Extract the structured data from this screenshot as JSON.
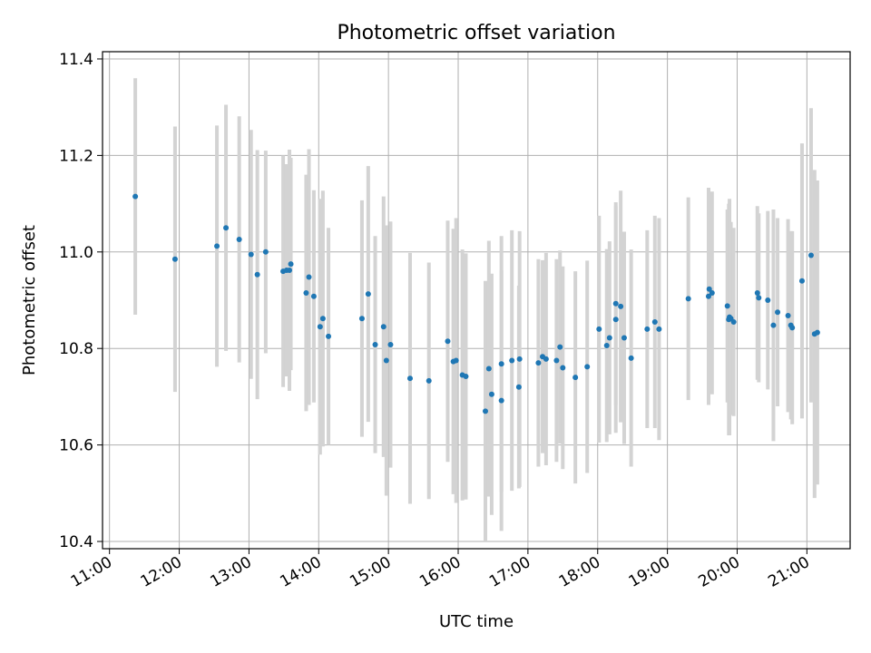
{
  "chart_data": {
    "type": "scatter",
    "title": "Photometric offset variation",
    "xlabel": "UTC time",
    "ylabel": "Photometric offset",
    "xlim": [
      10.9,
      21.62
    ],
    "ylim": [
      10.385,
      11.415
    ],
    "grid": true,
    "x_ticks": [
      {
        "value": 11,
        "label": "11:00"
      },
      {
        "value": 12,
        "label": "12:00"
      },
      {
        "value": 13,
        "label": "13:00"
      },
      {
        "value": 14,
        "label": "14:00"
      },
      {
        "value": 15,
        "label": "15:00"
      },
      {
        "value": 16,
        "label": "16:00"
      },
      {
        "value": 17,
        "label": "17:00"
      },
      {
        "value": 18,
        "label": "18:00"
      },
      {
        "value": 19,
        "label": "19:00"
      },
      {
        "value": 20,
        "label": "20:00"
      },
      {
        "value": 21,
        "label": "21:00"
      }
    ],
    "y_ticks": [
      {
        "value": 10.4,
        "label": "10.4"
      },
      {
        "value": 10.6,
        "label": "10.6"
      },
      {
        "value": 10.8,
        "label": "10.8"
      },
      {
        "value": 11.0,
        "label": "11.0"
      },
      {
        "value": 11.2,
        "label": "11.2"
      },
      {
        "value": 11.4,
        "label": "11.4"
      }
    ],
    "colors": {
      "points": "#1f77b4",
      "errorbars": "#d3d3d3",
      "grid": "#b0b0b0"
    },
    "series": [
      {
        "name": "offset",
        "points": [
          [
            11.37,
            11.115,
            0.245
          ],
          [
            11.94,
            10.985,
            0.275
          ],
          [
            12.54,
            11.012,
            0.25
          ],
          [
            12.67,
            11.05,
            0.255
          ],
          [
            12.86,
            11.026,
            0.255
          ],
          [
            13.03,
            10.995,
            0.258
          ],
          [
            13.12,
            10.953,
            0.258
          ],
          [
            13.24,
            11.0,
            0.21
          ],
          [
            13.49,
            10.96,
            0.24
          ],
          [
            13.54,
            10.962,
            0.22
          ],
          [
            13.58,
            10.962,
            0.25
          ],
          [
            13.6,
            10.975,
            0.22
          ],
          [
            13.82,
            10.915,
            0.245
          ],
          [
            13.86,
            10.948,
            0.265
          ],
          [
            13.93,
            10.908,
            0.22
          ],
          [
            14.02,
            10.845,
            0.265
          ],
          [
            14.06,
            10.862,
            0.265
          ],
          [
            14.14,
            10.825,
            0.225
          ],
          [
            14.62,
            10.862,
            0.245
          ],
          [
            14.71,
            10.913,
            0.265
          ],
          [
            14.81,
            10.808,
            0.225
          ],
          [
            14.93,
            10.845,
            0.27
          ],
          [
            14.97,
            10.775,
            0.28
          ],
          [
            15.03,
            10.808,
            0.255
          ],
          [
            15.31,
            10.738,
            0.26
          ],
          [
            15.58,
            10.733,
            0.245
          ],
          [
            15.85,
            10.815,
            0.25
          ],
          [
            15.93,
            10.773,
            0.275
          ],
          [
            15.97,
            10.775,
            0.295
          ],
          [
            16.06,
            10.745,
            0.26
          ],
          [
            16.11,
            10.742,
            0.255
          ],
          [
            16.39,
            10.67,
            0.27
          ],
          [
            16.44,
            10.758,
            0.265
          ],
          [
            16.48,
            10.705,
            0.25
          ],
          [
            16.62,
            10.768,
            0.265
          ],
          [
            16.62,
            10.692,
            0.27
          ],
          [
            16.77,
            10.775,
            0.27
          ],
          [
            16.87,
            10.72,
            0.21
          ],
          [
            16.88,
            10.778,
            0.265
          ],
          [
            17.15,
            10.77,
            0.215
          ],
          [
            17.21,
            10.783,
            0.2
          ],
          [
            17.26,
            10.778,
            0.22
          ],
          [
            17.41,
            10.775,
            0.21
          ],
          [
            17.46,
            10.803,
            0.2
          ],
          [
            17.5,
            10.76,
            0.21
          ],
          [
            17.68,
            10.74,
            0.22
          ],
          [
            17.85,
            10.762,
            0.22
          ],
          [
            18.02,
            10.84,
            0.235
          ],
          [
            18.13,
            10.806,
            0.2
          ],
          [
            18.17,
            10.822,
            0.2
          ],
          [
            18.26,
            10.86,
            0.235
          ],
          [
            18.26,
            10.893,
            0.21
          ],
          [
            18.33,
            10.887,
            0.24
          ],
          [
            18.38,
            10.822,
            0.22
          ],
          [
            18.48,
            10.78,
            0.225
          ],
          [
            18.71,
            10.84,
            0.205
          ],
          [
            18.82,
            10.855,
            0.22
          ],
          [
            18.88,
            10.84,
            0.23
          ],
          [
            19.3,
            10.903,
            0.21
          ],
          [
            19.59,
            10.908,
            0.225
          ],
          [
            19.6,
            10.923,
            0.19
          ],
          [
            19.64,
            10.915,
            0.21
          ],
          [
            19.86,
            10.888,
            0.2
          ],
          [
            19.88,
            10.86,
            0.24
          ],
          [
            19.89,
            10.865,
            0.245
          ],
          [
            19.91,
            10.862,
            0.2
          ],
          [
            19.95,
            10.855,
            0.195
          ],
          [
            20.29,
            10.915,
            0.18
          ],
          [
            20.31,
            10.905,
            0.175
          ],
          [
            20.44,
            10.9,
            0.185
          ],
          [
            20.52,
            10.848,
            0.24
          ],
          [
            20.58,
            10.875,
            0.195
          ],
          [
            20.73,
            10.868,
            0.2
          ],
          [
            20.77,
            10.848,
            0.195
          ],
          [
            20.79,
            10.843,
            0.2
          ],
          [
            20.93,
            10.94,
            0.285
          ],
          [
            21.06,
            10.993,
            0.305
          ],
          [
            21.11,
            10.83,
            0.34
          ],
          [
            21.15,
            10.833,
            0.315
          ]
        ]
      }
    ]
  }
}
